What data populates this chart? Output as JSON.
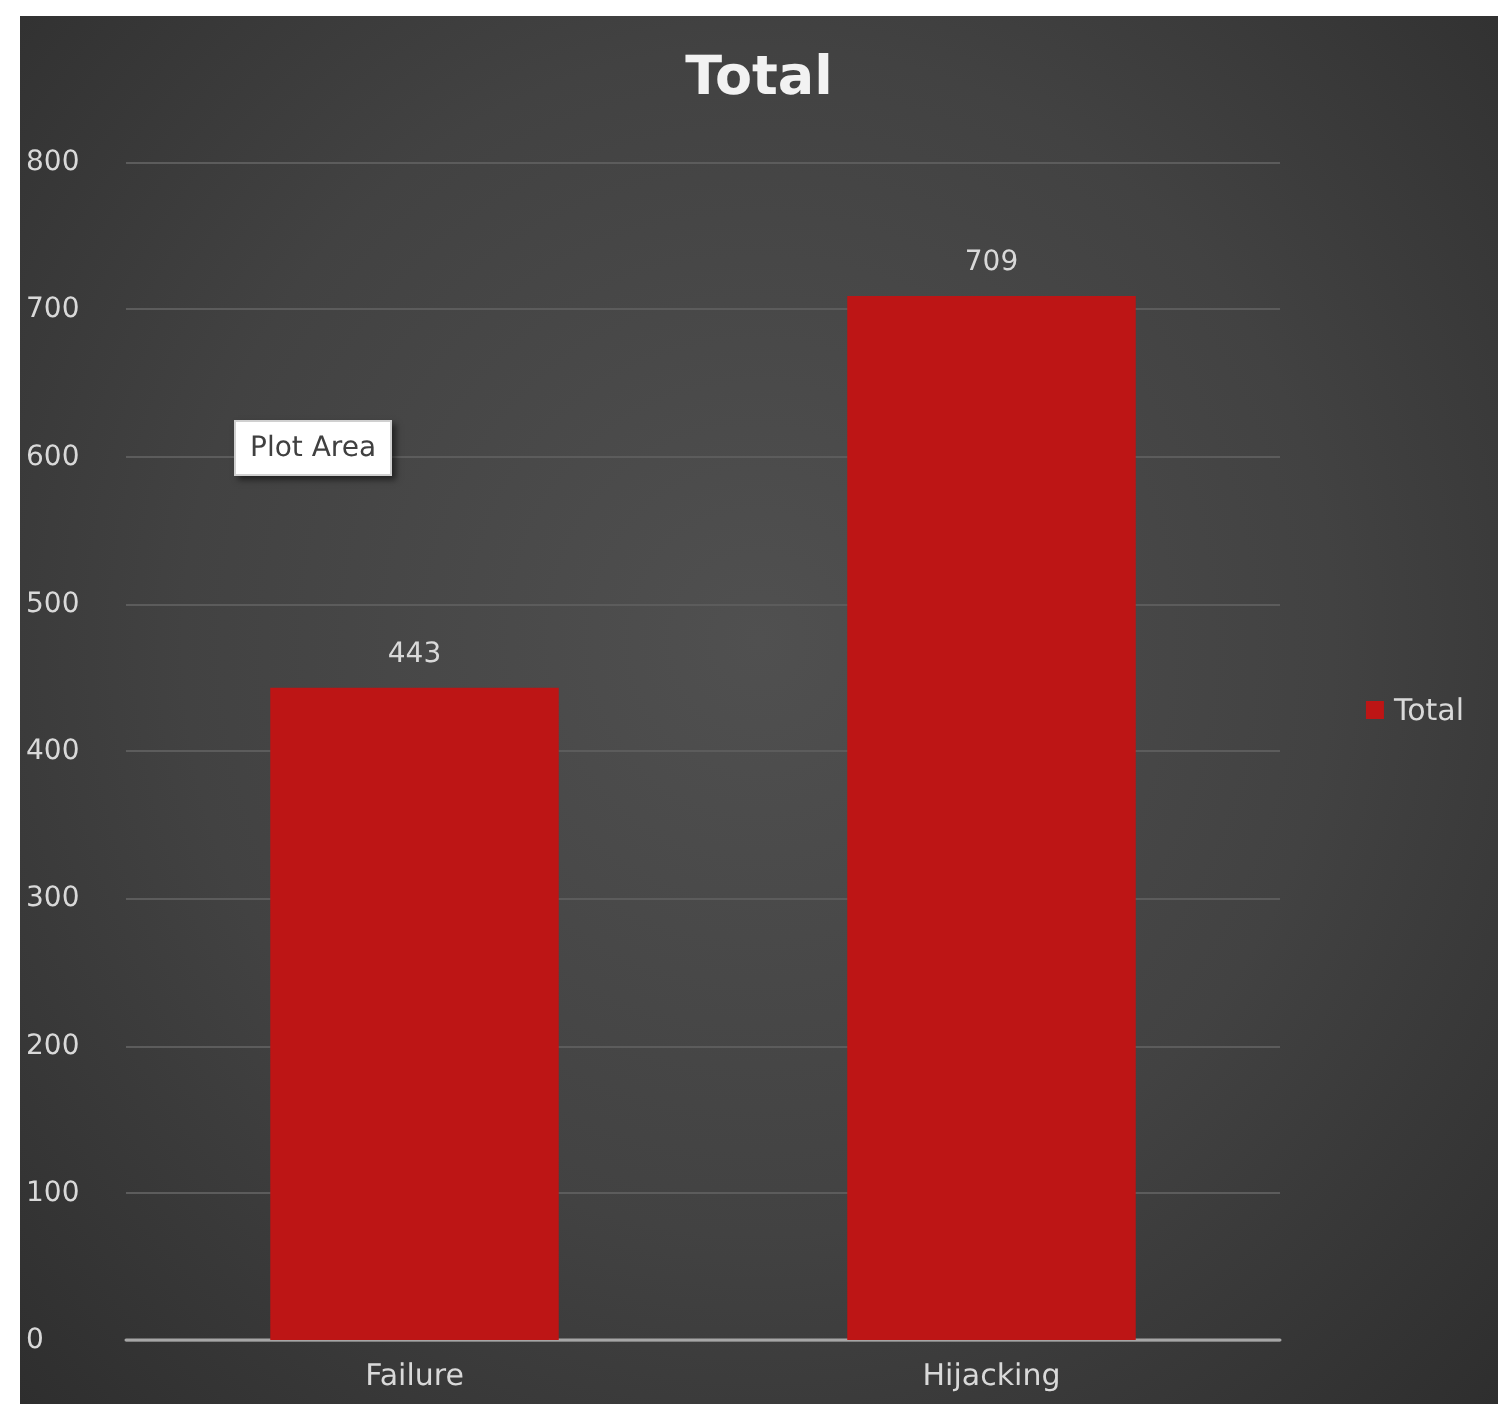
{
  "chart_data": {
    "type": "bar",
    "title": "Total",
    "categories": [
      "Failure",
      "Hijacking"
    ],
    "series": [
      {
        "name": "Total",
        "color": "#bd1515",
        "values": [
          443,
          709
        ]
      }
    ],
    "ylim": [
      0,
      800
    ],
    "yticks": [
      0,
      100,
      200,
      300,
      400,
      500,
      600,
      700,
      800
    ],
    "grid": "y",
    "legend": "right",
    "data_labels": true,
    "annotations": [
      "Plot Area"
    ]
  }
}
